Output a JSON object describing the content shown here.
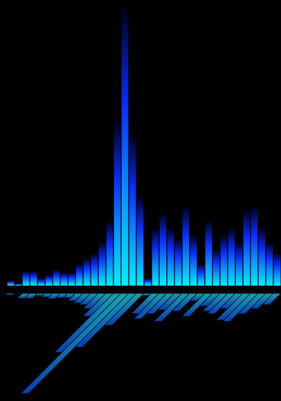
{
  "chart_data": {
    "type": "bar",
    "categories": [
      null,
      null,
      null,
      null,
      null,
      null,
      null,
      null,
      null,
      null,
      null,
      null,
      null,
      null,
      null,
      null,
      null,
      null,
      null,
      null,
      null,
      null,
      null,
      null,
      null,
      null,
      null,
      null,
      null,
      null,
      null,
      null,
      null,
      null,
      null,
      null
    ],
    "values": [
      7,
      3,
      20,
      20,
      10,
      15,
      22,
      18,
      18,
      30,
      38,
      45,
      60,
      90,
      230,
      390,
      210,
      125,
      10,
      80,
      100,
      80,
      65,
      110,
      70,
      30,
      90,
      50,
      70,
      80,
      60,
      105,
      110,
      80,
      60,
      45
    ],
    "color": "#0a2cff",
    "ylim": [
      0,
      400
    ],
    "grid": false,
    "tick_labels": false
  }
}
